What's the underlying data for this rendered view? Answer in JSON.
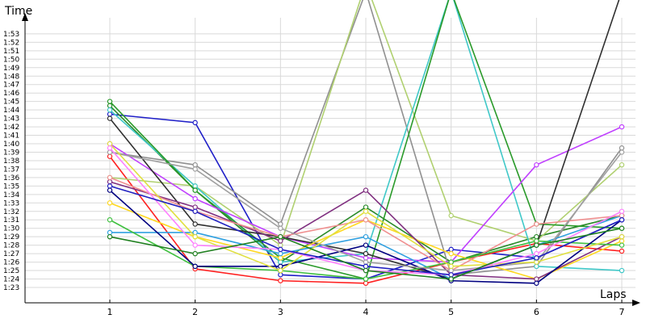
{
  "chart_data": {
    "type": "line",
    "ylabel": "Time",
    "xlabel": "Laps",
    "x": [
      1,
      2,
      3,
      4,
      5,
      6,
      7
    ],
    "x_tick_labels": [
      "1",
      "2",
      "3",
      "4",
      "5",
      "6",
      "7"
    ],
    "y_tick_labels": [
      "1:23",
      "1:24",
      "1:25",
      "1:26",
      "1:27",
      "1:28",
      "1:29",
      "1:30",
      "1:31",
      "1:32",
      "1:33",
      "1:34",
      "1:35",
      "1:36",
      "1:37",
      "1:38",
      "1:39",
      "1:40",
      "1:41",
      "1:42",
      "1:43",
      "1:44",
      "1:45",
      "1:46",
      "1:47",
      "1:48",
      "1:49",
      "1:50",
      "1:51",
      "1:52",
      "1:53"
    ],
    "ylim_seconds": [
      82,
      114
    ],
    "grid": true,
    "series": [
      {
        "color": "#1f1fc8",
        "values": [
          103.5,
          102.5,
          84.5,
          84,
          87.5,
          86.5,
          91
        ]
      },
      {
        "color": "#ff2020",
        "values": [
          98.5,
          85.2,
          83.8,
          83.5,
          86,
          88.2,
          87.3
        ]
      },
      {
        "color": "#2a8a2a",
        "values": [
          104.5,
          94.5,
          86,
          92.5,
          86,
          89,
          91.5
        ]
      },
      {
        "color": "#909090",
        "values": [
          99,
          97.5,
          90.5,
          118,
          84.5,
          85.5,
          99.5
        ]
      },
      {
        "color": "#b0d070",
        "values": [
          96,
          95,
          88,
          119,
          91.5,
          88.5,
          97.5
        ]
      },
      {
        "color": "#40c8c8",
        "values": [
          104,
          95,
          86,
          87,
          118,
          85.5,
          85
        ]
      },
      {
        "color": "#2a9a2a",
        "values": [
          105,
          94.5,
          86.5,
          84,
          118,
          90.5,
          90
        ]
      },
      {
        "color": "#c040ff",
        "values": [
          100,
          93.5,
          89,
          86.5,
          86,
          97.5,
          102
        ]
      },
      {
        "color": "#303030",
        "values": [
          103,
          90.5,
          89,
          87,
          84,
          88,
          118
        ]
      },
      {
        "color": "#ffd820",
        "values": [
          93,
          89,
          86.5,
          91,
          87,
          84,
          88.5
        ]
      },
      {
        "color": "#803080",
        "values": [
          95.5,
          92.5,
          88.5,
          94.5,
          84.5,
          84,
          89
        ]
      },
      {
        "color": "#30a0e0",
        "values": [
          89.5,
          89.5,
          87,
          89,
          84,
          88,
          91.5
        ]
      },
      {
        "color": "#f09090",
        "values": [
          96,
          92,
          89,
          91,
          85,
          90.5,
          91.5
        ]
      },
      {
        "color": "#40c040",
        "values": [
          91,
          85.5,
          85,
          84,
          86,
          88.5,
          88
        ]
      },
      {
        "color": "#000080",
        "values": [
          94.5,
          85.5,
          85.5,
          88,
          83.8,
          83.5,
          91
        ]
      },
      {
        "color": "#a0a0a0",
        "values": [
          99,
          97,
          90,
          86,
          85,
          86,
          99
        ]
      },
      {
        "color": "#e0e040",
        "values": [
          100,
          89,
          85,
          92,
          85.5,
          86,
          89
        ]
      },
      {
        "color": "#ff80ff",
        "values": [
          99.5,
          88,
          87.5,
          85,
          84.5,
          87,
          92
        ]
      },
      {
        "color": "#2020c0",
        "values": [
          95,
          92,
          87.5,
          85.5,
          84.5,
          86.5,
          91
        ]
      },
      {
        "color": "#208020",
        "values": [
          89,
          87,
          89,
          85,
          84,
          88,
          90
        ]
      }
    ]
  }
}
